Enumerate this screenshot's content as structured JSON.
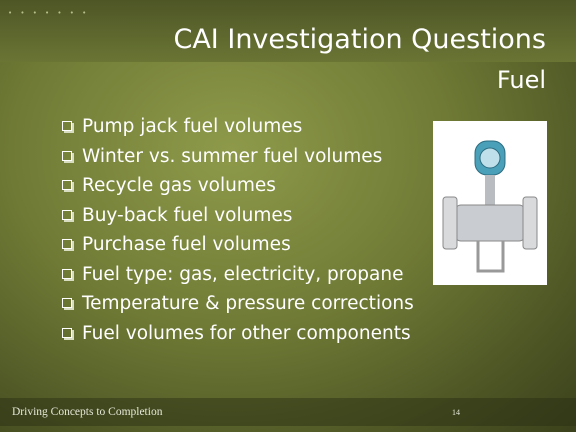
{
  "slide": {
    "title": "CAI Investigation Questions",
    "subtitle": "Fuel",
    "bullets": [
      "Pump jack fuel volumes",
      "Winter vs. summer fuel volumes",
      "Recycle gas volumes",
      "Buy-back fuel volumes",
      "Purchase fuel volumes",
      "Fuel type: gas, electricity, propane",
      "Temperature & pressure corrections",
      "Fuel volumes for other components"
    ],
    "footer": "Driving Concepts to Completion",
    "page_number": "14"
  }
}
